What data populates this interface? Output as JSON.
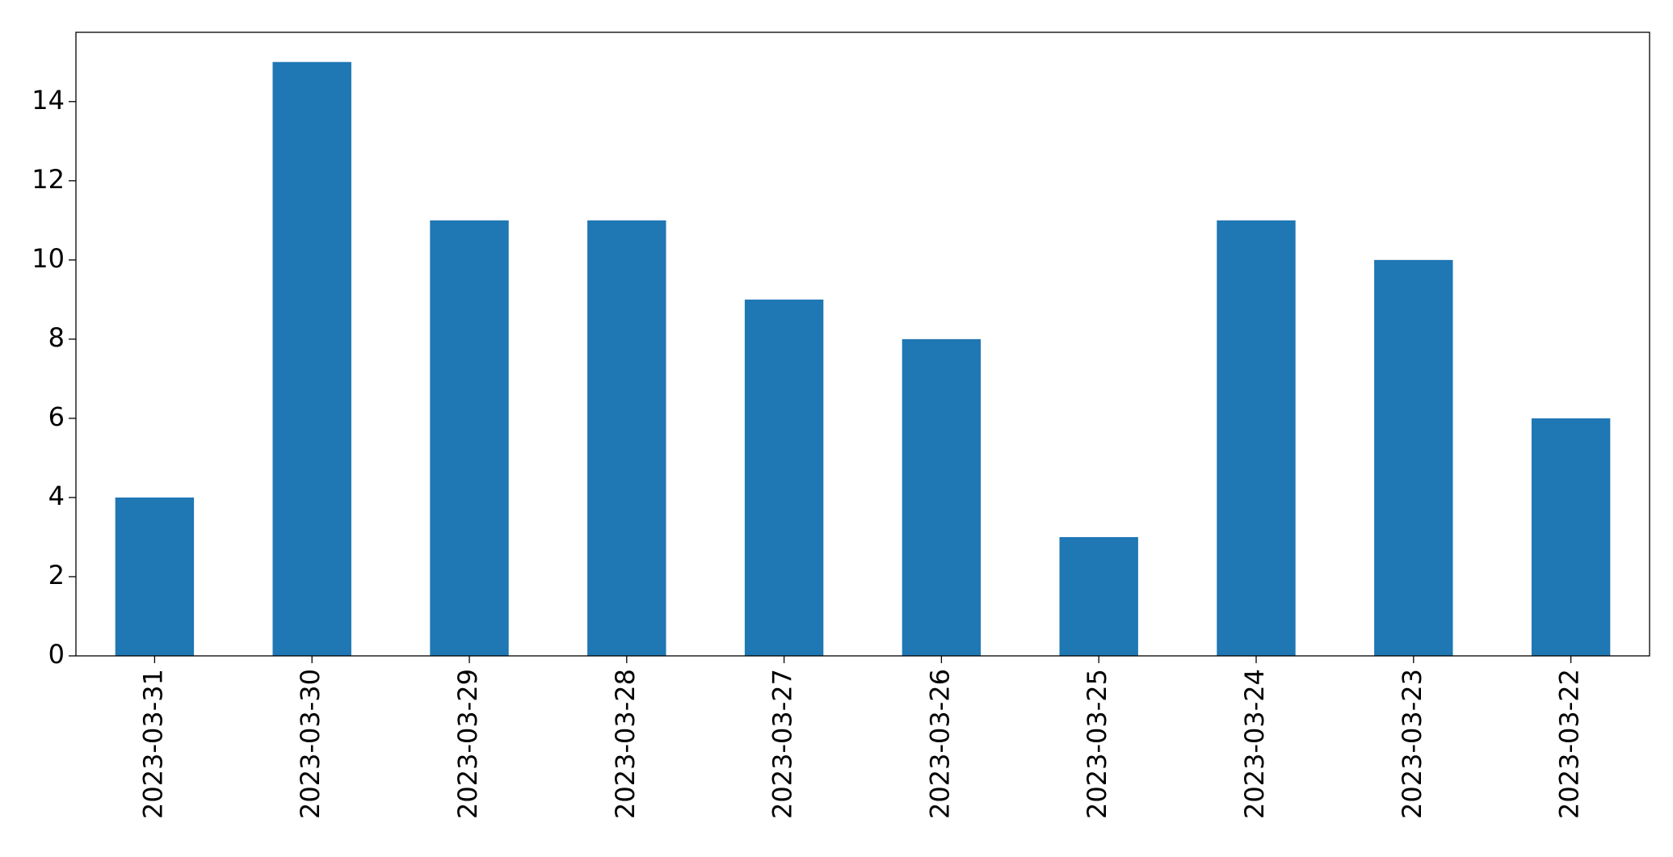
{
  "chart_data": {
    "type": "bar",
    "categories": [
      "2023-03-31",
      "2023-03-30",
      "2023-03-29",
      "2023-03-28",
      "2023-03-27",
      "2023-03-26",
      "2023-03-25",
      "2023-03-24",
      "2023-03-23",
      "2023-03-22"
    ],
    "values": [
      4,
      15,
      11,
      11,
      9,
      8,
      3,
      11,
      10,
      6
    ],
    "color": "#1f77b4",
    "ylim": [
      0,
      15.75
    ],
    "yticks": [
      0,
      2,
      4,
      6,
      8,
      10,
      12,
      14
    ],
    "grid": false
  }
}
